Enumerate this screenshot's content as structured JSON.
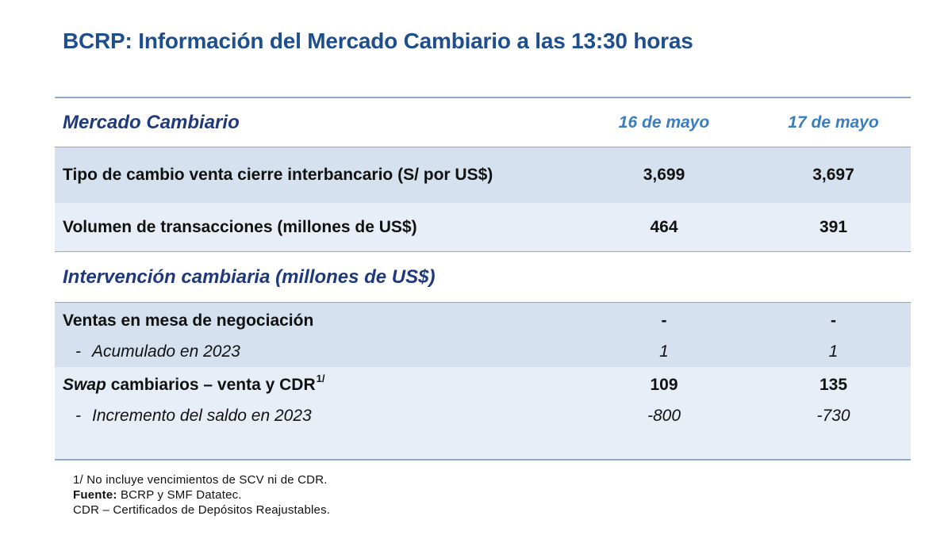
{
  "title": "BCRP: Información del Mercado Cambiario a las 13:30 horas",
  "table": {
    "header": {
      "label": "Mercado Cambiario",
      "col1": "16 de mayo",
      "col2": "17 de mayo"
    },
    "rows": [
      {
        "label": "Tipo de cambio venta cierre interbancario (S/ por US$)",
        "col1": "3,699",
        "col2": "3,697"
      },
      {
        "label": "Volumen de transacciones (millones de US$)",
        "col1": "464",
        "col2": "391"
      }
    ],
    "section": {
      "label": "Intervención cambiaria (millones de US$)"
    },
    "intervention": {
      "ventas": {
        "label": "Ventas en mesa de negociación",
        "col1": "-",
        "col2": "-"
      },
      "ventas_acumulado": {
        "dash": "-",
        "label": "Acumulado en 2023",
        "col1": "1",
        "col2": "1"
      },
      "swap": {
        "label_italic": "Swap",
        "label_rest": " cambiarios – venta y CDR",
        "sup": "1/",
        "col1": "109",
        "col2": "135"
      },
      "swap_incremento": {
        "dash": "-",
        "label": "Incremento del saldo en 2023",
        "col1": "-800",
        "col2": "-730"
      }
    }
  },
  "footnotes": {
    "note1": "1/ No incluye vencimientos de SCV ni de CDR.",
    "source_label": "Fuente:",
    "source_text": " BCRP y SMF Datatec.",
    "cdr": "CDR – Certificados de Depósitos Reajustables."
  }
}
